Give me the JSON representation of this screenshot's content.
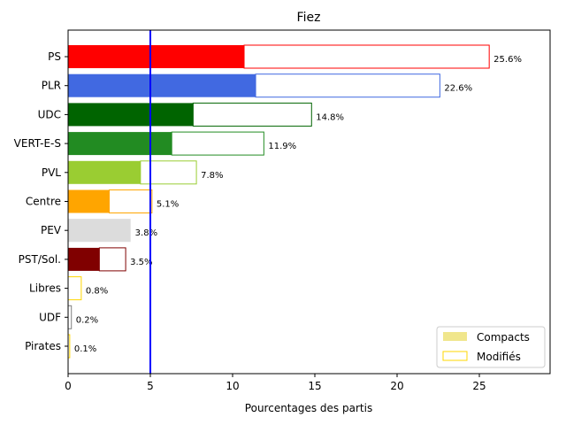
{
  "chart_data": {
    "type": "bar",
    "orientation": "horizontal",
    "title": "Fiez",
    "xlabel": "Pourcentages des partis",
    "ylabel": "",
    "xlim": [
      0,
      29.3
    ],
    "xticks": [
      0,
      5,
      10,
      15,
      20,
      25
    ],
    "threshold_line": {
      "x": 5,
      "color": "#0000ff"
    },
    "grid": false,
    "legend_position": "bottom-right",
    "categories": [
      "PS",
      "PLR",
      "UDC",
      "VERT-E-S",
      "PVL",
      "Centre",
      "PEV",
      "PST/Sol.",
      "Libres",
      "UDF",
      "Pirates"
    ],
    "series": [
      {
        "name": "Compacts",
        "values": [
          10.7,
          11.4,
          7.6,
          6.3,
          4.4,
          2.5,
          3.8,
          1.9,
          0.0,
          0.0,
          0.0
        ]
      },
      {
        "name": "Modifiés",
        "values": [
          14.9,
          11.2,
          7.2,
          5.6,
          3.4,
          2.6,
          0.0,
          1.6,
          0.8,
          0.2,
          0.1
        ]
      }
    ],
    "totals": [
      25.6,
      22.6,
      14.8,
      11.9,
      7.8,
      5.1,
      3.8,
      3.5,
      0.8,
      0.2,
      0.1
    ],
    "data_labels": [
      "25.6%",
      "22.6%",
      "14.8%",
      "11.9%",
      "7.8%",
      "5.1%",
      "3.8%",
      "3.5%",
      "0.8%",
      "0.2%",
      "0.1%"
    ],
    "colors": [
      "#ff0000",
      "#4169e1",
      "#006400",
      "#228b22",
      "#9acd32",
      "#ffa500",
      "#dcdcdc",
      "#800000",
      "#ffd700",
      "#808080",
      "#ffd700"
    ],
    "legend_colors": {
      "compacts_fill": "#f0e68c",
      "modifies_edge": "#ffd700"
    }
  }
}
